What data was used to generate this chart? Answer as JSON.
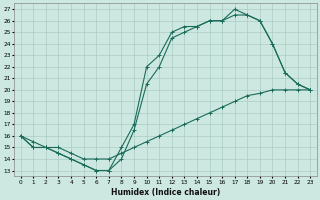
{
  "title": "",
  "xlabel": "Humidex (Indice chaleur)",
  "background_color": "#cce8e0",
  "grid_color": "#aaccc4",
  "line_color": "#1a6b5a",
  "xlim": [
    -0.5,
    23.5
  ],
  "ylim": [
    12.5,
    27.5
  ],
  "yticks": [
    13,
    14,
    15,
    16,
    17,
    18,
    19,
    20,
    21,
    22,
    23,
    24,
    25,
    26,
    27
  ],
  "xticks": [
    0,
    1,
    2,
    3,
    4,
    5,
    6,
    7,
    8,
    9,
    10,
    11,
    12,
    13,
    14,
    15,
    16,
    17,
    18,
    19,
    20,
    21,
    22,
    23
  ],
  "curve1_x": [
    0,
    1,
    2,
    3,
    4,
    5,
    6,
    7,
    8,
    9,
    10,
    11,
    12,
    13,
    14,
    15,
    16,
    17,
    18,
    19,
    20,
    21,
    22,
    23
  ],
  "curve1_y": [
    16,
    15,
    15,
    14.5,
    14,
    13.5,
    13,
    13,
    15,
    17,
    22,
    23,
    25,
    25.5,
    25.5,
    26,
    26,
    27,
    26.5,
    26,
    24,
    21.5,
    20.5,
    20
  ],
  "curve2_x": [
    0,
    1,
    2,
    3,
    4,
    5,
    6,
    7,
    8,
    9,
    10,
    11,
    12,
    13,
    14,
    15,
    16,
    17,
    18,
    19,
    20,
    21,
    22,
    23
  ],
  "curve2_y": [
    16,
    15,
    15,
    14.5,
    14,
    13.5,
    13,
    13,
    14,
    16.5,
    20.5,
    22,
    24.5,
    25,
    25.5,
    26,
    26,
    26.5,
    26.5,
    26,
    24,
    21.5,
    20.5,
    20
  ],
  "curve3_x": [
    0,
    1,
    2,
    3,
    4,
    5,
    6,
    7,
    8,
    9,
    10,
    11,
    12,
    13,
    14,
    15,
    16,
    17,
    18,
    19,
    20,
    21,
    22,
    23
  ],
  "curve3_y": [
    16,
    15.5,
    15,
    15,
    14.5,
    14,
    14,
    14,
    14.5,
    15,
    15.5,
    16,
    16.5,
    17,
    17.5,
    18,
    18.5,
    19,
    19.5,
    19.7,
    20,
    20,
    20,
    20
  ]
}
